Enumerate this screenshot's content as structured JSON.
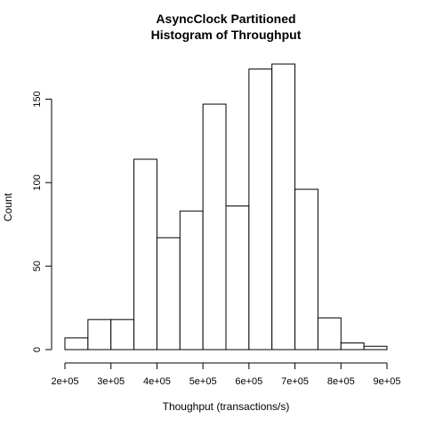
{
  "chart_data": {
    "type": "bar",
    "title": "AsyncClock Partitioned",
    "subtitle": "Histogram of Throughput",
    "xlabel": "Thoughput (transactions/s)",
    "ylabel": "Count",
    "bin_edges": [
      200000,
      250000,
      300000,
      350000,
      400000,
      450000,
      500000,
      550000,
      600000,
      650000,
      700000,
      750000,
      800000,
      850000,
      900000
    ],
    "values": [
      7,
      18,
      18,
      114,
      67,
      83,
      147,
      86,
      168,
      171,
      96,
      19,
      4,
      2
    ],
    "x_ticks": [
      200000,
      300000,
      400000,
      500000,
      600000,
      700000,
      800000,
      900000
    ],
    "x_tick_labels": [
      "2e+05",
      "3e+05",
      "4e+05",
      "5e+05",
      "6e+05",
      "7e+05",
      "8e+05",
      "9e+05"
    ],
    "y_ticks": [
      0,
      50,
      100,
      150
    ],
    "y_tick_labels": [
      "0",
      "50",
      "100",
      "150"
    ],
    "xlim": [
      200000,
      900000
    ],
    "ylim": [
      0,
      171
    ],
    "grid": false,
    "bar_fill": "#ffffff",
    "bar_stroke": "#000000"
  }
}
